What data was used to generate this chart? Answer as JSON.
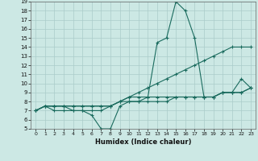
{
  "xlabel": "Humidex (Indice chaleur)",
  "bg_color": "#cce8e4",
  "grid_color": "#aaccca",
  "line_color": "#1a6b5e",
  "xlim": [
    -0.5,
    23.5
  ],
  "ylim": [
    5,
    19
  ],
  "xticks": [
    0,
    1,
    2,
    3,
    4,
    5,
    6,
    7,
    8,
    9,
    10,
    11,
    12,
    13,
    14,
    15,
    16,
    17,
    18,
    19,
    20,
    21,
    22,
    23
  ],
  "yticks": [
    5,
    6,
    7,
    8,
    9,
    10,
    11,
    12,
    13,
    14,
    15,
    16,
    17,
    18,
    19
  ],
  "series": [
    {
      "x": [
        0,
        1,
        2,
        3,
        4,
        5,
        6,
        7,
        8,
        9,
        10,
        11,
        12,
        13,
        14,
        15,
        16,
        17,
        18,
        19,
        20,
        21,
        22,
        23
      ],
      "y": [
        7,
        7.5,
        7,
        7,
        7,
        7,
        6.5,
        5,
        5,
        7.5,
        8,
        8,
        8.5,
        14.5,
        15,
        19,
        18,
        15,
        8.5,
        8.5,
        9,
        9,
        10.5,
        9.5
      ]
    },
    {
      "x": [
        0,
        1,
        2,
        3,
        4,
        5,
        6,
        7,
        8,
        9,
        10,
        11,
        12,
        13,
        14,
        15,
        16,
        17,
        18,
        19,
        20,
        21,
        22,
        23
      ],
      "y": [
        7,
        7.5,
        7.5,
        7.5,
        7.5,
        7.5,
        7.5,
        7.5,
        7.5,
        8,
        8.5,
        9,
        9.5,
        10,
        10.5,
        11,
        11.5,
        12,
        12.5,
        13,
        13.5,
        14,
        14,
        14
      ]
    },
    {
      "x": [
        0,
        1,
        2,
        3,
        4,
        5,
        6,
        7,
        8,
        9,
        10,
        11,
        12,
        13,
        14,
        15,
        16,
        17,
        18,
        19,
        20,
        21,
        22,
        23
      ],
      "y": [
        7,
        7.5,
        7.5,
        7.5,
        7.5,
        7.5,
        7.5,
        7.5,
        7.5,
        8,
        8.5,
        8.5,
        8.5,
        8.5,
        8.5,
        8.5,
        8.5,
        8.5,
        8.5,
        8.5,
        9,
        9,
        9,
        9.5
      ]
    },
    {
      "x": [
        0,
        1,
        2,
        3,
        4,
        5,
        6,
        7,
        8,
        9,
        10,
        11,
        12,
        13,
        14,
        15,
        16,
        17,
        18,
        19,
        20,
        21,
        22,
        23
      ],
      "y": [
        7,
        7.5,
        7.5,
        7.5,
        7,
        7,
        7,
        7,
        7.5,
        8,
        8,
        8,
        8,
        8,
        8,
        8.5,
        8.5,
        8.5,
        8.5,
        8.5,
        9,
        9,
        9,
        9.5
      ]
    }
  ],
  "xlabel_fontsize": 6,
  "tick_fontsize": 5,
  "marker_size": 3,
  "linewidth": 0.8
}
